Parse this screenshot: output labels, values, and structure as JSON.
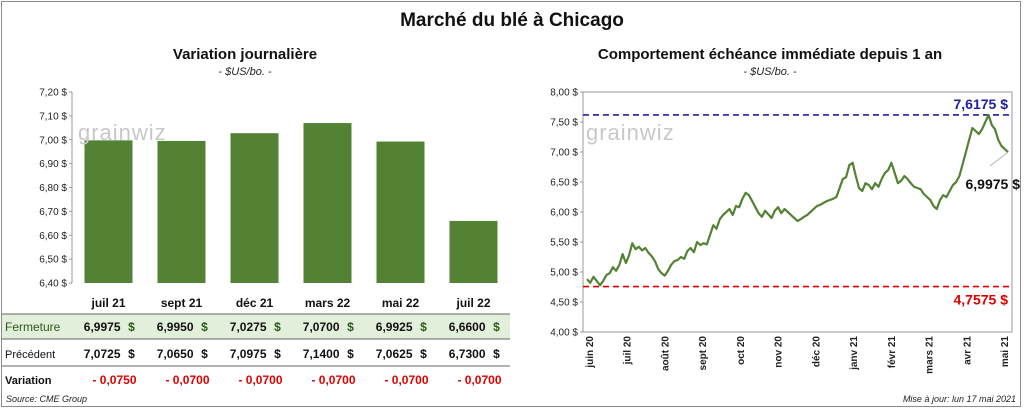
{
  "title": "Marché du blé à Chicago",
  "source": "Source: CME Group",
  "updated": "Mise à jour: lun 17 mai 2021",
  "watermark": "grainwiz",
  "colors": {
    "bar": "#548235",
    "line": "#548235",
    "high": "#1f1fa0",
    "low": "#e00000",
    "negative": "#e00000",
    "table_highlight": "#e2efda"
  },
  "chart_data": [
    {
      "type": "bar",
      "title": "Variation journalière",
      "subtitle": "- $US/bo. -",
      "categories": [
        "juil 21",
        "sept 21",
        "déc 21",
        "mars 22",
        "mai 22",
        "juil 22"
      ],
      "values": [
        6.9975,
        6.995,
        7.0275,
        7.07,
        6.9925,
        6.66
      ],
      "ylim": [
        6.4,
        7.2
      ],
      "yticks": [
        "6,40 $",
        "6,50 $",
        "6,60 $",
        "6,70 $",
        "6,80 $",
        "6,90 $",
        "7,00 $",
        "7,10 $",
        "7,20 $"
      ],
      "table": {
        "rows": [
          {
            "label": "Fermeture",
            "values": [
              "6,9975",
              "6,9950",
              "7,0275",
              "7,0700",
              "6,9925",
              "6,6600"
            ],
            "unit": "$"
          },
          {
            "label": "Précédent",
            "values": [
              "7,0725",
              "7,0650",
              "7,0975",
              "7,1400",
              "7,0625",
              "6,7300"
            ],
            "unit": "$"
          },
          {
            "label": "Variation",
            "values": [
              "- 0,0750",
              "- 0,0700",
              "- 0,0700",
              "- 0,0700",
              "- 0,0700",
              "- 0,0700"
            ],
            "unit": ""
          }
        ]
      }
    },
    {
      "type": "line",
      "title": "Comportement  échéance immédiate depuis 1 an",
      "subtitle": "- $US/bo. -",
      "ylim": [
        4.0,
        8.0
      ],
      "yticks": [
        "4,00 $",
        "4,50 $",
        "5,00 $",
        "5,50 $",
        "6,00 $",
        "6,50 $",
        "7,00 $",
        "7,50 $",
        "8,00 $"
      ],
      "xticks": [
        "juin 20",
        "juil 20",
        "août 20",
        "sept 20",
        "oct 20",
        "nov 20",
        "déc 20",
        "janv 21",
        "févr 21",
        "mars 21",
        "avr 21",
        "mai 21"
      ],
      "high": {
        "value": 7.6175,
        "label": "7,6175 $"
      },
      "low": {
        "value": 4.7575,
        "label": "4,7575 $"
      },
      "last": {
        "value": 6.9975,
        "label": "6,9975 $"
      },
      "series": [
        {
          "values": [
            4.88,
            4.82,
            4.92,
            4.85,
            4.78,
            4.85,
            4.95,
            4.98,
            5.08,
            5.02,
            5.12,
            5.3,
            5.15,
            5.28,
            5.48,
            5.38,
            5.42,
            5.36,
            5.4,
            5.32,
            5.26,
            5.18,
            5.05,
            4.98,
            4.94,
            5.02,
            5.12,
            5.18,
            5.2,
            5.25,
            5.22,
            5.35,
            5.4,
            5.33,
            5.5,
            5.45,
            5.48,
            5.46,
            5.62,
            5.78,
            5.72,
            5.88,
            5.95,
            6.0,
            6.05,
            5.95,
            6.1,
            6.08,
            6.22,
            6.32,
            6.28,
            6.18,
            6.08,
            5.98,
            5.92,
            6.02,
            5.96,
            5.9,
            6.02,
            6.08,
            5.98,
            6.05,
            6.0,
            5.95,
            5.9,
            5.85,
            5.88,
            5.92,
            5.95,
            6.0,
            6.05,
            6.1,
            6.12,
            6.15,
            6.18,
            6.2,
            6.22,
            6.25,
            6.4,
            6.55,
            6.58,
            6.78,
            6.82,
            6.6,
            6.4,
            6.35,
            6.48,
            6.45,
            6.38,
            6.48,
            6.42,
            6.55,
            6.65,
            6.7,
            6.82,
            6.65,
            6.48,
            6.52,
            6.6,
            6.55,
            6.48,
            6.42,
            6.4,
            6.38,
            6.3,
            6.25,
            6.2,
            6.1,
            6.05,
            6.2,
            6.28,
            6.25,
            6.35,
            6.45,
            6.5,
            6.6,
            6.8,
            7.0,
            7.2,
            7.4,
            7.35,
            7.3,
            7.38,
            7.5,
            7.6175,
            7.45,
            7.38,
            7.2,
            7.1,
            7.05,
            6.9975
          ]
        }
      ]
    }
  ]
}
